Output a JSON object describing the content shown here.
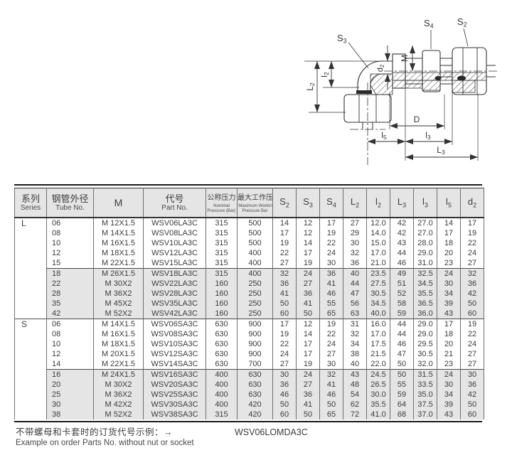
{
  "drawing": {
    "labels": {
      "s3": {
        "base": "S",
        "sub": "3"
      },
      "s4": {
        "base": "S",
        "sub": "4"
      },
      "s2": {
        "base": "S",
        "sub": "2"
      },
      "d2": {
        "base": "d",
        "sub": "2"
      },
      "m": {
        "base": "M",
        "sub": ""
      },
      "bigL2": {
        "base": "L",
        "sub": "2"
      },
      "l2": {
        "base": "l",
        "sub": "2"
      },
      "d": {
        "base": "D",
        "sub": ""
      },
      "l5": {
        "base": "l",
        "sub": "5"
      },
      "l3": {
        "base": "l",
        "sub": "3"
      },
      "bigL3": {
        "base": "L",
        "sub": "3"
      }
    }
  },
  "table": {
    "headers": {
      "series_cn": "系列",
      "series_en": "Series",
      "tube_cn": "钢管外径",
      "tube_en": "Tube No.",
      "m": "M",
      "part_cn": "代号",
      "part_en": "Part No.",
      "nominal_cn": "公称压力",
      "nominal_en1": "Nominal",
      "nominal_en2": "Pressure (Bar)",
      "max_cn": "最大工作压力",
      "max_en1": "Maximum Working",
      "max_en2": "Pressure Bar"
    },
    "dim_columns": [
      {
        "base": "S",
        "sub": "2"
      },
      {
        "base": "S",
        "sub": "3"
      },
      {
        "base": "S",
        "sub": "4"
      },
      {
        "base": "L",
        "sub": "2"
      },
      {
        "base": "l",
        "sub": "2"
      },
      {
        "base": "L",
        "sub": "3"
      },
      {
        "base": "l",
        "sub": "3"
      },
      {
        "base": "l",
        "sub": "5"
      },
      {
        "base": "d",
        "sub": "2"
      }
    ],
    "groups": [
      {
        "series": "L",
        "seriesRowspan": 10,
        "shaded": false,
        "rows": [
          [
            "06",
            "M 12X1.5",
            "WSV06LA3C",
            "315",
            "500",
            "14",
            "12",
            "17",
            "27",
            "12.0",
            "42",
            "27.0",
            "14",
            "17"
          ],
          [
            "08",
            "M 14X1.5",
            "WSV08LA3C",
            "315",
            "500",
            "17",
            "12",
            "19",
            "29",
            "14.0",
            "42",
            "27.0",
            "17",
            "19"
          ],
          [
            "10",
            "M 16X1.5",
            "WSV10LA3C",
            "315",
            "500",
            "19",
            "14",
            "22",
            "30",
            "15.0",
            "43",
            "28.0",
            "18",
            "22"
          ],
          [
            "12",
            "M 18X1.5",
            "WSV12LA3C",
            "315",
            "400",
            "22",
            "17",
            "24",
            "32",
            "17.0",
            "44",
            "29.0",
            "20",
            "24"
          ],
          [
            "15",
            "M 22X1.5",
            "WSV15LA3C",
            "315",
            "400",
            "27",
            "19",
            "30",
            "36",
            "21.0",
            "46",
            "31.0",
            "23",
            "27"
          ]
        ]
      },
      {
        "shaded": true,
        "rows": [
          [
            "18",
            "M 26X1.5",
            "WSV18LA3C",
            "315",
            "400",
            "32",
            "24",
            "36",
            "40",
            "23.5",
            "49",
            "32.5",
            "24",
            "32"
          ],
          [
            "22",
            "M 30X2",
            "WSV22LA3C",
            "160",
            "250",
            "36",
            "27",
            "41",
            "44",
            "27.5",
            "51",
            "34.5",
            "30",
            "36"
          ],
          [
            "28",
            "M 36X2",
            "WSV28LA3C",
            "160",
            "250",
            "41",
            "36",
            "46",
            "47",
            "30.5",
            "52",
            "35.5",
            "34",
            "42"
          ],
          [
            "35",
            "M 45X2",
            "WSV35LA3C",
            "160",
            "250",
            "50",
            "41",
            "55",
            "56",
            "34.5",
            "58",
            "36.5",
            "39",
            "50"
          ],
          [
            "42",
            "M 52X2",
            "WSV42LA3C",
            "160",
            "250",
            "60",
            "50",
            "65",
            "63",
            "40.0",
            "59",
            "36.0",
            "43",
            "60"
          ]
        ]
      },
      {
        "series": "S",
        "seriesRowspan": 10,
        "shaded": false,
        "rows": [
          [
            "06",
            "M 14X1.5",
            "WSV06SA3C",
            "630",
            "900",
            "17",
            "12",
            "19",
            "31",
            "16.0",
            "44",
            "29.0",
            "17",
            "19"
          ],
          [
            "08",
            "M 16X1.5",
            "WSV08SA3C",
            "630",
            "900",
            "19",
            "14",
            "22",
            "32",
            "17.0",
            "44",
            "29.0",
            "18",
            "22"
          ],
          [
            "10",
            "M 18X1.5",
            "WSV10SA3C",
            "630",
            "900",
            "22",
            "17",
            "24",
            "34",
            "17.5",
            "46",
            "29.5",
            "20",
            "24"
          ],
          [
            "12",
            "M 20X1.5",
            "WSV12SA3C",
            "630",
            "900",
            "24",
            "17",
            "27",
            "38",
            "21.5",
            "47",
            "30.5",
            "21",
            "27"
          ],
          [
            "14",
            "M 22X1.5",
            "WSV14SA3C",
            "630",
            "700",
            "27",
            "19",
            "30",
            "40",
            "22.0",
            "50",
            "32.0",
            "23",
            "27"
          ]
        ]
      },
      {
        "shaded": true,
        "rows": [
          [
            "16",
            "M 24X1.5",
            "WSV16SA3C",
            "400",
            "630",
            "30",
            "24",
            "32",
            "43",
            "24.5",
            "50",
            "31.5",
            "24",
            "30"
          ],
          [
            "20",
            "M 30X2",
            "WSV20SA3C",
            "400",
            "630",
            "36",
            "27",
            "41",
            "48",
            "26.5",
            "55",
            "33.5",
            "30",
            "36"
          ],
          [
            "25",
            "M 36X2",
            "WSV25SA3C",
            "400",
            "630",
            "46",
            "36",
            "46",
            "54",
            "30.0",
            "59",
            "35.0",
            "34",
            "42"
          ],
          [
            "30",
            "M 42X2",
            "WSV30SA3C",
            "400",
            "420",
            "50",
            "41",
            "50",
            "62",
            "35.5",
            "64",
            "37.5",
            "39",
            "50"
          ],
          [
            "38",
            "M 52X2",
            "WSV38SA3C",
            "315",
            "420",
            "60",
            "50",
            "65",
            "72",
            "41.0",
            "68",
            "37.0",
            "43",
            "60"
          ]
        ]
      }
    ]
  },
  "footer": {
    "line1_cn": "不带螺母和卡套时的订货代号示例：→",
    "line2_en": "Example on order Parts No. without nut or socket",
    "example_code": "WSV06LOMDA3C"
  },
  "colors": {
    "header_bg": "#e5e5e5",
    "shaded_row_bg": "#e5e5e5",
    "border": "#6e6e6e",
    "heavy_rule": "#1a1a1a",
    "text": "#3c3c3c"
  }
}
